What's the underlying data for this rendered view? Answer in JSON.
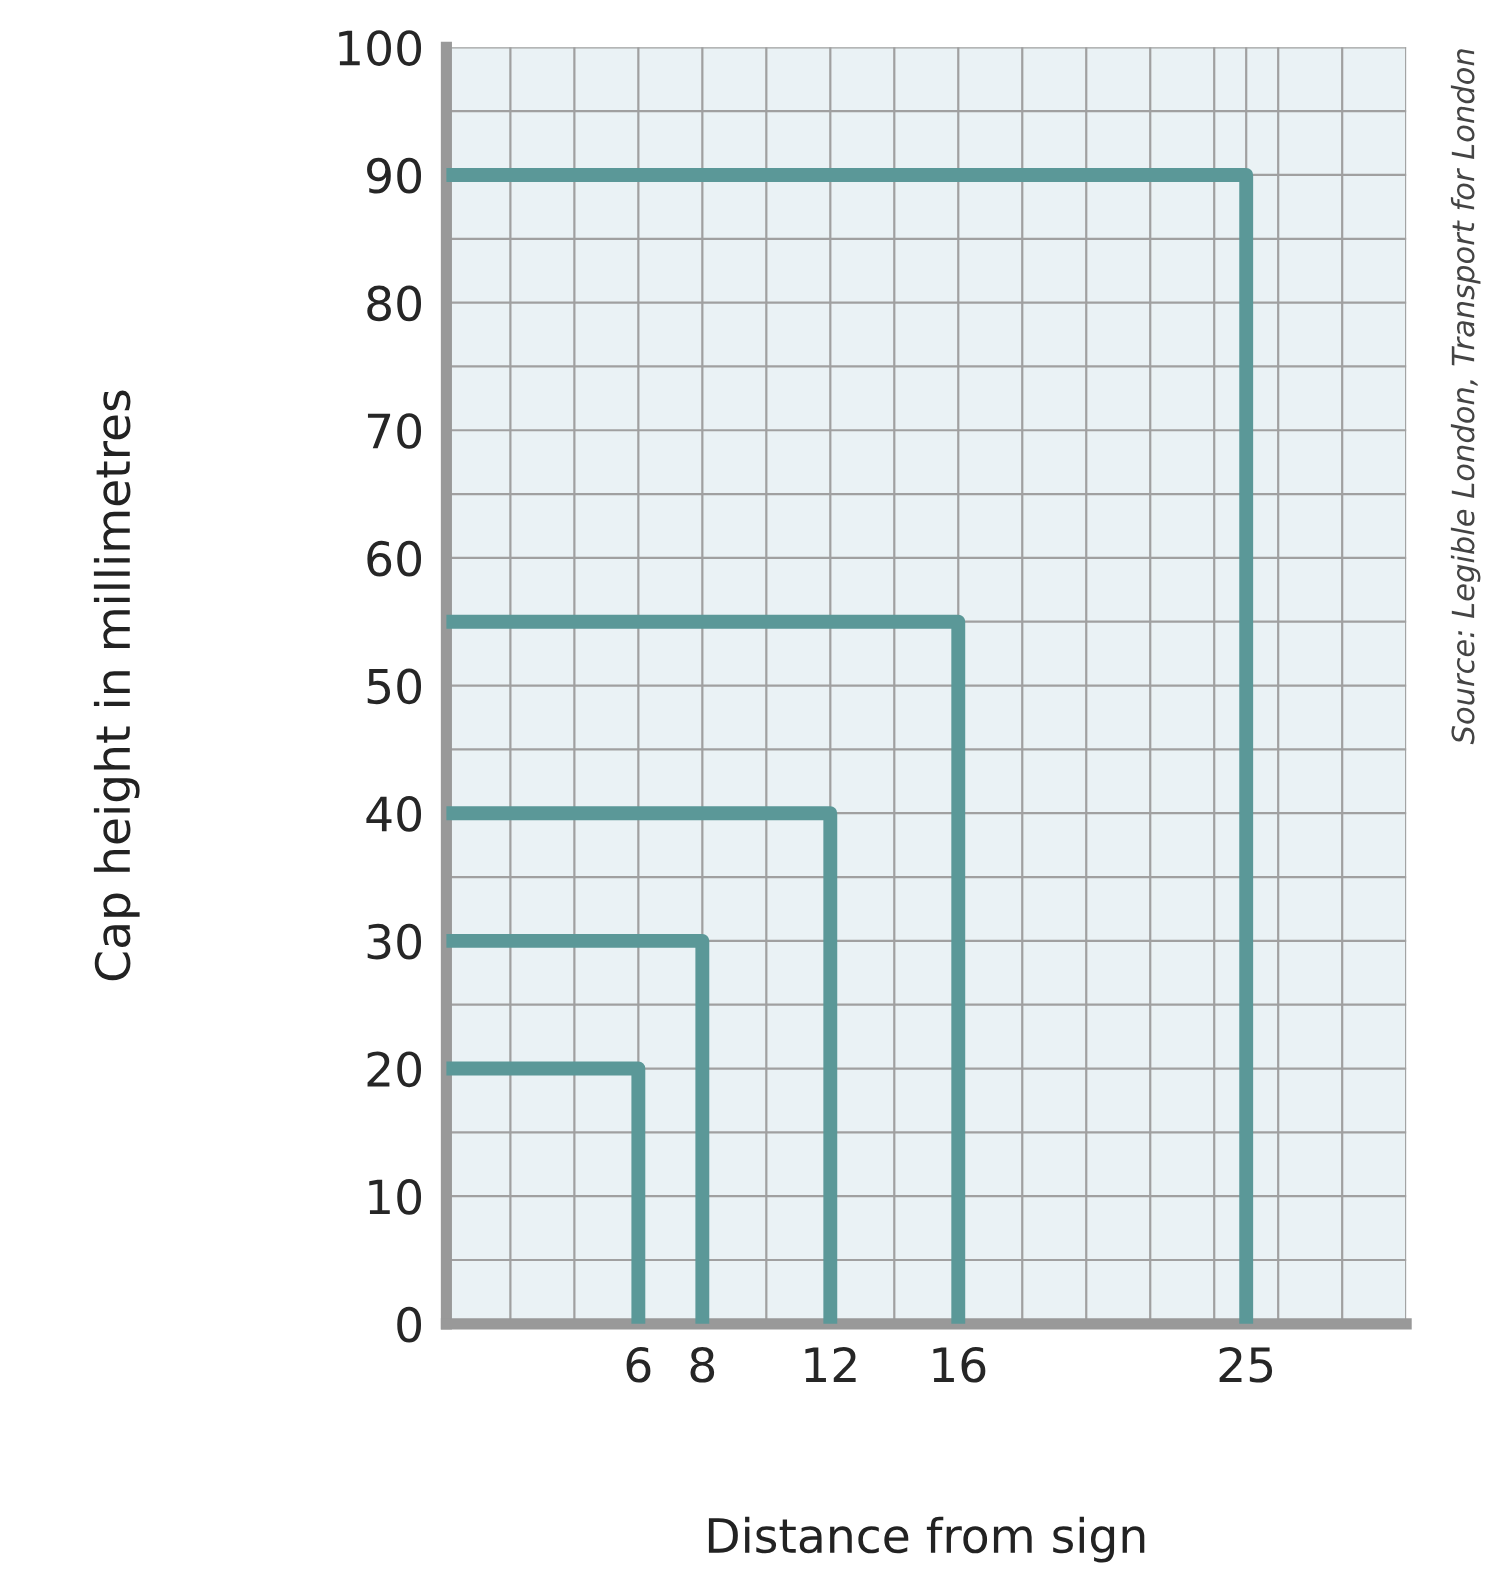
{
  "chart_data": {
    "type": "line",
    "xlabel": "Distance from sign",
    "ylabel": "Cap height in millimetres",
    "annotations": [
      "Source: Legible London, Transport for London"
    ],
    "series": [
      {
        "x": [
          0,
          6,
          6
        ],
        "values": [
          20,
          20,
          0
        ],
        "color": "#5b9898"
      },
      {
        "x": [
          0,
          8,
          8
        ],
        "values": [
          30,
          30,
          0
        ],
        "color": "#5b9898"
      },
      {
        "x": [
          0,
          12,
          12
        ],
        "values": [
          40,
          40,
          0
        ],
        "color": "#5b9898"
      },
      {
        "x": [
          0,
          16,
          16
        ],
        "values": [
          55,
          55,
          0
        ],
        "color": "#5b9898"
      },
      {
        "x": [
          0,
          25,
          25
        ],
        "values": [
          90,
          90,
          0
        ],
        "color": "#5b9898"
      }
    ],
    "xlim": [
      0,
      30
    ],
    "xticks": [
      {
        "value": 2,
        "label": null
      },
      {
        "value": 4,
        "label": null
      },
      6,
      8,
      {
        "value": 10,
        "label": null
      },
      12,
      {
        "value": 14,
        "label": null
      },
      16,
      {
        "value": 18,
        "label": null
      },
      {
        "value": 20,
        "label": null
      },
      {
        "value": 22,
        "label": null
      },
      {
        "value": 24,
        "label": null
      },
      25,
      {
        "value": 26,
        "label": null
      },
      {
        "value": 28,
        "label": null
      },
      {
        "value": 30,
        "label": null
      }
    ],
    "ylim": [
      0,
      100
    ],
    "yticks": [
      0,
      {
        "value": 5,
        "label": null
      },
      10,
      {
        "value": 15,
        "label": null
      },
      20,
      {
        "value": 25,
        "label": null
      },
      30,
      {
        "value": 35,
        "label": null
      },
      40,
      {
        "value": 45,
        "label": null
      },
      50,
      {
        "value": 55,
        "label": null
      },
      60,
      {
        "value": 65,
        "label": null
      },
      70,
      {
        "value": 75,
        "label": null
      },
      80,
      {
        "value": 85,
        "label": null
      },
      90,
      {
        "value": 95,
        "label": null
      },
      100
    ],
    "grid": true,
    "legend": false,
    "marker": "none",
    "line_style": "solid"
  }
}
